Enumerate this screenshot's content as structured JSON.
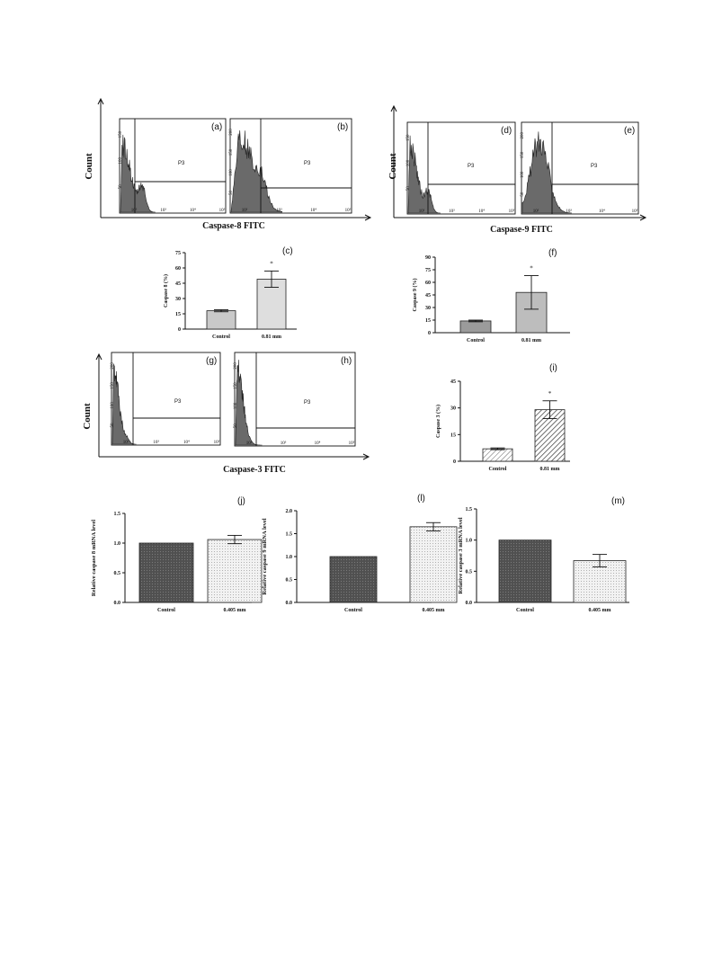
{
  "figure": {
    "flow_rows": [
      {
        "id": "row1",
        "y_axis_label": "Count",
        "groups": [
          {
            "x_axis_label": "Caspase-8 FITC",
            "panels": [
              {
                "letter": "(a)",
                "gate": "P3",
                "yticks": [
                  "0",
                  "50",
                  "100",
                  "150"
                ],
                "xticks": [
                  "10²",
                  "10³",
                  "10⁴",
                  "10⁵"
                ]
              },
              {
                "letter": "(b)",
                "gate": "P3",
                "yticks": [
                  "0",
                  "50",
                  "100",
                  "150",
                  "200"
                ],
                "xticks": [
                  "10²",
                  "10³",
                  "10⁴",
                  "10⁵"
                ]
              }
            ]
          },
          {
            "x_axis_label": "Caspase-9 FITC",
            "panels": [
              {
                "letter": "(d)",
                "gate": "P3",
                "yticks": [
                  "0",
                  "50",
                  "100",
                  "150"
                ],
                "xticks": [
                  "10²",
                  "10³",
                  "10⁴",
                  "10⁵"
                ]
              },
              {
                "letter": "(e)",
                "gate": "P3",
                "yticks": [
                  "0",
                  "50",
                  "100",
                  "150",
                  "200"
                ],
                "xticks": [
                  "10²",
                  "10³",
                  "10⁴",
                  "10⁵"
                ]
              }
            ]
          }
        ]
      },
      {
        "id": "row2",
        "y_axis_label": "Count",
        "groups": [
          {
            "x_axis_label": "Caspase-3 FITC",
            "panels": [
              {
                "letter": "(g)",
                "gate": "P3",
                "yticks": [
                  "0",
                  "50",
                  "100",
                  "150",
                  "200"
                ],
                "xticks": [
                  "10²",
                  "10³",
                  "10⁴",
                  "10⁵"
                ]
              },
              {
                "letter": "(h)",
                "gate": "P3",
                "yticks": [
                  "0",
                  "50",
                  "100",
                  "150",
                  "200"
                ],
                "xticks": [
                  "10²",
                  "10³",
                  "10⁴",
                  "10⁵"
                ]
              }
            ]
          }
        ]
      }
    ],
    "colors": {
      "control_bar": "#c8c8c8",
      "treated_bar": "#e0e0e0",
      "histogram": "#6a6a6a",
      "dark_bar": "#5a5a5a"
    }
  },
  "chart_data": [
    {
      "id": "c",
      "type": "bar",
      "letter": "(c)",
      "categories": [
        "Control",
        "0.81 mm"
      ],
      "values": [
        18,
        49
      ],
      "errors": [
        1,
        8
      ],
      "significance": [
        "",
        "*"
      ],
      "ylabel": "Caspase 8 (%)",
      "ylim": [
        0,
        75
      ],
      "yticks": [
        "0",
        "15",
        "30",
        "45",
        "60",
        "75"
      ]
    },
    {
      "id": "f",
      "type": "bar",
      "letter": "(f)",
      "categories": [
        "Control",
        "0.81 mm"
      ],
      "values": [
        14,
        48
      ],
      "errors": [
        1,
        20
      ],
      "significance": [
        "",
        "*"
      ],
      "ylabel": "Caspase 9 (%)",
      "ylim": [
        0,
        90
      ],
      "yticks": [
        "0",
        "15",
        "30",
        "45",
        "60",
        "75",
        "90"
      ]
    },
    {
      "id": "i",
      "type": "bar",
      "letter": "(i)",
      "categories": [
        "Control",
        "0.81 mm"
      ],
      "values": [
        7,
        29
      ],
      "errors": [
        0.5,
        5
      ],
      "significance": [
        "",
        "*"
      ],
      "ylabel": "Caspase 3 (%)",
      "ylim": [
        0,
        45
      ],
      "yticks": [
        "0",
        "15",
        "30",
        "45"
      ]
    },
    {
      "id": "j",
      "type": "bar",
      "letter": "(j)",
      "categories": [
        "Control",
        "0.405 mm"
      ],
      "values": [
        1.0,
        1.06
      ],
      "errors": [
        0,
        0.07
      ],
      "ylabel": "Relative caspase 8 mRNA level",
      "ylim": [
        0,
        1.5
      ],
      "yticks": [
        "0.0",
        "0.5",
        "1.0",
        "1.5"
      ]
    },
    {
      "id": "l",
      "type": "bar",
      "letter": "(l)",
      "categories": [
        "Control",
        "0.405 mm"
      ],
      "values": [
        1.0,
        1.65
      ],
      "errors": [
        0,
        0.09
      ],
      "ylabel": "Relative caspase 9 mRNA level",
      "ylim": [
        0,
        2.0
      ],
      "yticks": [
        "0.0",
        "0.5",
        "1.0",
        "1.5",
        "2.0"
      ]
    },
    {
      "id": "m",
      "type": "bar",
      "letter": "(m)",
      "categories": [
        "Control",
        "0.405 mm"
      ],
      "values": [
        1.0,
        0.67
      ],
      "errors": [
        0,
        0.1
      ],
      "ylabel": "Relative caspase 3 mRNA level",
      "ylim": [
        0,
        1.5
      ],
      "yticks": [
        "0.0",
        "0.5",
        "1.0",
        "1.5"
      ]
    }
  ]
}
